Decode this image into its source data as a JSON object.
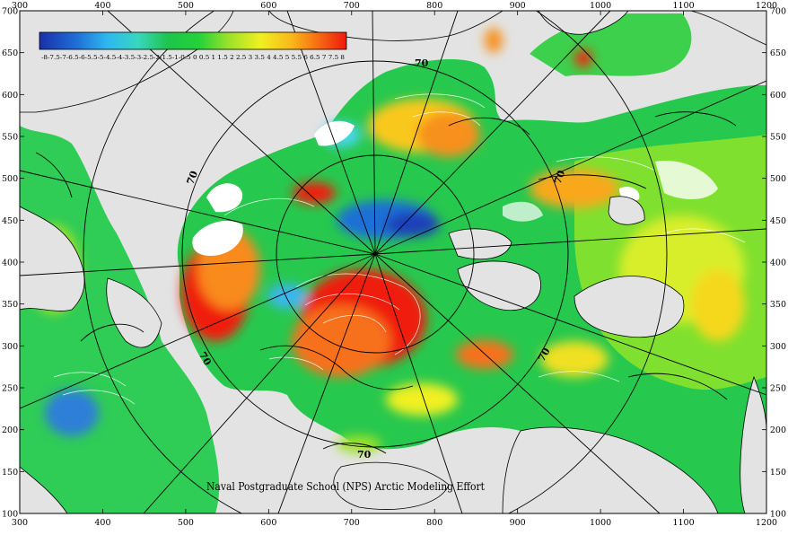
{
  "map": {
    "credit": "Naval Postgraduate School (NPS) Arctic Modeling Effort",
    "latitude_circle_labels": [
      "70",
      "70",
      "70",
      "70",
      "70",
      "70"
    ],
    "axes": {
      "x_ticks": [
        "300",
        "400",
        "500",
        "600",
        "700",
        "800",
        "900",
        "1000",
        "1100",
        "1200"
      ],
      "y_ticks": [
        "700",
        "650",
        "600",
        "550",
        "500",
        "450",
        "400",
        "350",
        "300",
        "250",
        "200",
        "150",
        "100"
      ]
    },
    "colorbar": {
      "tick_labels": "-8-7.5-7-6.5-6-5.5-5-4.5-4-3.5-3-2.5-2-1.5-1-0.5 0 0.5 1 1.5 2 2.5 3 3.5 4 4.5 5 5.5 6 6.5 7 7.5 8",
      "colors": [
        "#1a2fa8",
        "#1e6fd6",
        "#2eb7ef",
        "#39d6c0",
        "#1fc44a",
        "#23d23a",
        "#9fe22a",
        "#f0f020",
        "#f9b81a",
        "#f76a12",
        "#ee1a0c"
      ]
    },
    "palette": {
      "land": "#e3e3e3",
      "ice_shelf": "#ffffff",
      "contour": "#000000",
      "graticule": "#000000"
    }
  }
}
